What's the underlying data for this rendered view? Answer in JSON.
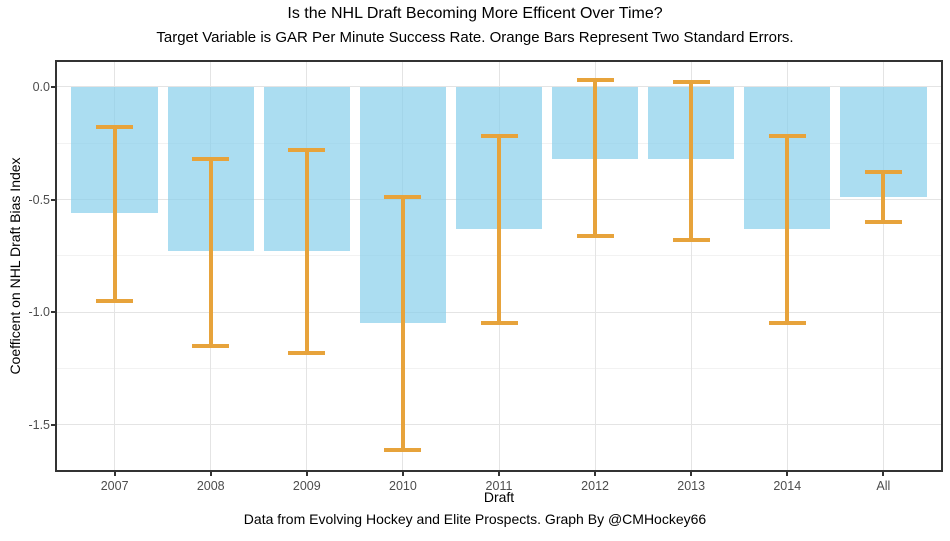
{
  "chart_data": {
    "type": "bar",
    "title": "Is the NHL Draft Becoming More Efficent Over Time?",
    "subtitle": "Target Variable is GAR Per Minute Success Rate. Orange Bars Represent Two Standard Errors.",
    "caption": "Data from Evolving Hockey and Elite Prospects. Graph By @CMHockey66",
    "xlabel": "Draft",
    "ylabel": "Coefficent on NHL Draft Bias Index",
    "categories": [
      "2007",
      "2008",
      "2009",
      "2010",
      "2011",
      "2012",
      "2013",
      "2014",
      "All"
    ],
    "values": [
      -0.56,
      -0.73,
      -0.73,
      -1.05,
      -0.63,
      -0.32,
      -0.32,
      -0.63,
      -0.49
    ],
    "error_high": [
      -0.18,
      -0.32,
      -0.28,
      -0.49,
      -0.22,
      0.03,
      0.02,
      -0.22,
      -0.38
    ],
    "error_low": [
      -0.95,
      -1.15,
      -1.18,
      -1.61,
      -1.05,
      -0.66,
      -0.68,
      -1.05,
      -0.6
    ],
    "error_meaning": "two standard errors",
    "y_ticks": [
      0.0,
      -0.5,
      -1.0,
      -1.5
    ],
    "y_tick_labels": [
      "0.0",
      "-0.5",
      "-1.0",
      "-1.5"
    ],
    "y_minor_ticks": [
      -0.25,
      -0.75,
      -1.25
    ],
    "ylim": [
      -1.7,
      0.11
    ],
    "grid": true,
    "legend": false,
    "colors": {
      "bar_fill": "#87CEEB",
      "bar_alpha": 0.7,
      "error_bar": "#E7A33B",
      "grid_major": "#E4E4E4",
      "grid_minor": "#F2F2F2",
      "panel_border": "#333333",
      "tick_text": "#4D4D4D",
      "title_text": "#000000"
    }
  }
}
